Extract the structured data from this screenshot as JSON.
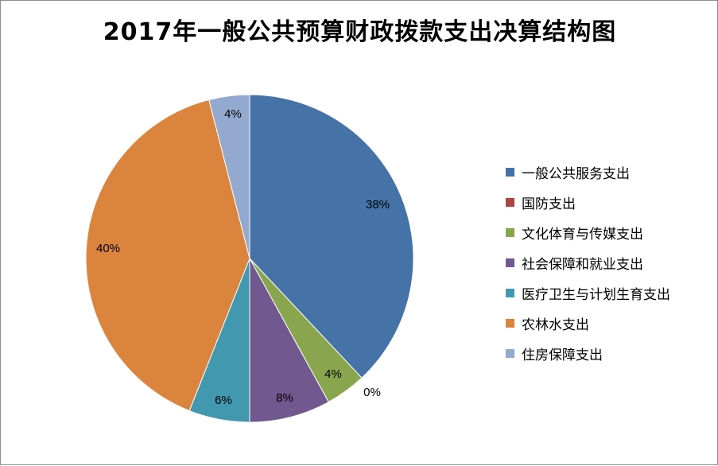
{
  "chart_data": {
    "type": "pie",
    "title": "2017年一般公共预算财政拨款支出决算结构图",
    "slices": [
      {
        "name": "一般公共服务支出",
        "value": 38,
        "label": "38%",
        "color": "#4572A7"
      },
      {
        "name": "国防支出",
        "value": 0,
        "label": "0%",
        "color": "#AA4643"
      },
      {
        "name": "文化体育与传媒支出",
        "value": 4,
        "label": "4%",
        "color": "#89A54E"
      },
      {
        "name": "社会保障和就业支出",
        "value": 8,
        "label": "8%",
        "color": "#71588F"
      },
      {
        "name": "医疗卫生与计划生育支出",
        "value": 6,
        "label": "6%",
        "color": "#4198AF"
      },
      {
        "name": "农林水支出",
        "value": 40,
        "label": "40%",
        "color": "#DB843D"
      },
      {
        "name": "住房保障支出",
        "value": 4,
        "label": "4%",
        "color": "#93A9CF"
      }
    ],
    "legend": "right"
  }
}
